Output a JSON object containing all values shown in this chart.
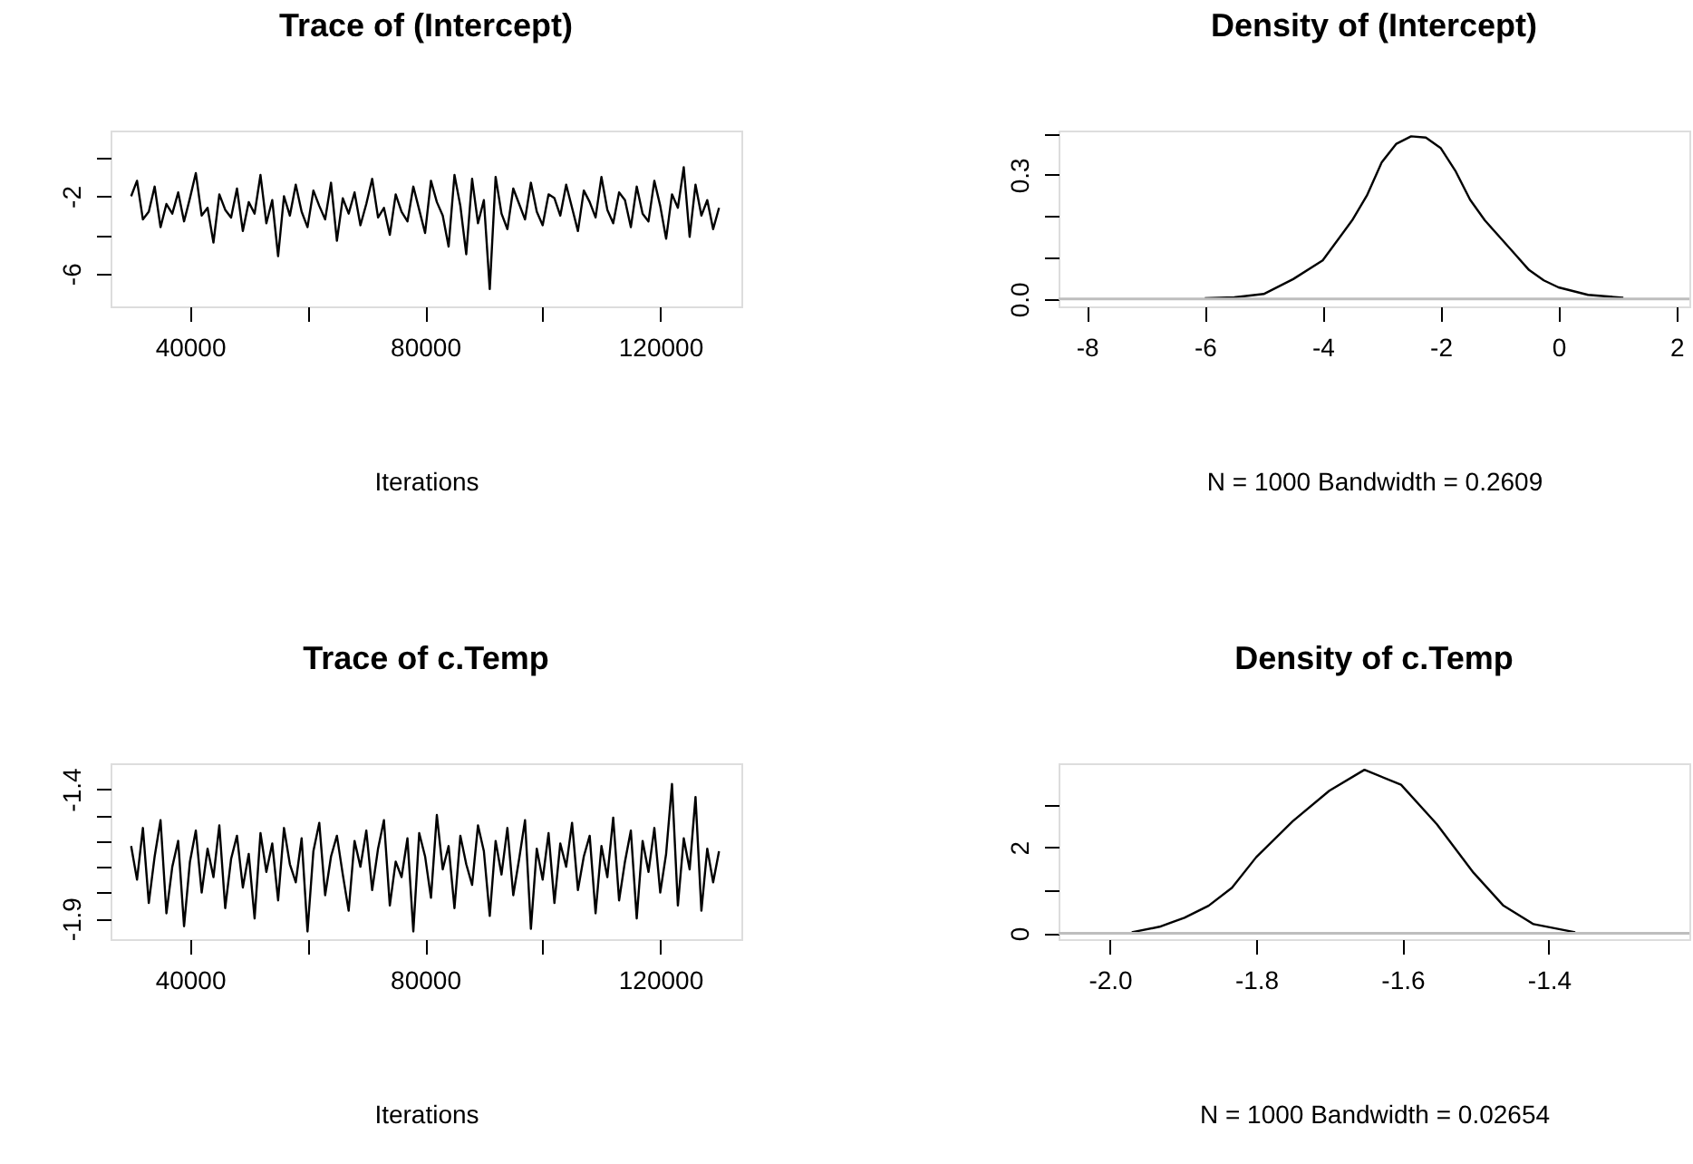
{
  "chart_data": [
    {
      "type": "line",
      "title": "Trace of (Intercept)",
      "xlabel": "Iterations",
      "grid": false,
      "marker": "none",
      "line_style": "solid",
      "xlim": [
        26500,
        133800
      ],
      "ylim": [
        -7.7,
        1.4
      ],
      "xticks": [
        40000,
        {
          "value": 60000,
          "label": null
        },
        80000,
        {
          "value": 100000,
          "label": null
        },
        120000
      ],
      "yticks": [
        {
          "value": 0,
          "label": null
        },
        -2,
        {
          "value": -4,
          "label": null
        },
        -6
      ],
      "series": [
        {
          "color": "#000000",
          "x": [
            30000,
            31000,
            32000,
            33000,
            34000,
            35000,
            36000,
            37000,
            38000,
            39000,
            40000,
            41000,
            42000,
            43000,
            44000,
            45000,
            46000,
            47000,
            48000,
            49000,
            50000,
            51000,
            52000,
            53000,
            54000,
            55000,
            56000,
            57000,
            58000,
            59000,
            60000,
            61000,
            62000,
            63000,
            64000,
            65000,
            66000,
            67000,
            68000,
            69000,
            70000,
            71000,
            72000,
            73000,
            74000,
            75000,
            76000,
            77000,
            78000,
            79000,
            80000,
            81000,
            82000,
            83000,
            84000,
            85000,
            86000,
            87000,
            88000,
            89000,
            90000,
            91000,
            92000,
            93000,
            94000,
            95000,
            96000,
            97000,
            98000,
            99000,
            100000,
            101000,
            102000,
            103000,
            104000,
            105000,
            106000,
            107000,
            108000,
            109000,
            110000,
            111000,
            112000,
            113000,
            114000,
            115000,
            116000,
            117000,
            118000,
            119000,
            120000,
            121000,
            122000,
            123000,
            124000,
            125000,
            126000,
            127000,
            128000,
            129000,
            130000
          ],
          "values": [
            -2.0,
            -1.2,
            -3.2,
            -2.8,
            -1.5,
            -3.6,
            -2.4,
            -2.9,
            -1.8,
            -3.3,
            -2.1,
            -0.8,
            -3.0,
            -2.6,
            -4.4,
            -1.9,
            -2.7,
            -3.1,
            -1.6,
            -3.8,
            -2.3,
            -2.9,
            -0.9,
            -3.4,
            -2.2,
            -5.1,
            -2.0,
            -3.0,
            -1.4,
            -2.8,
            -3.6,
            -1.7,
            -2.5,
            -3.2,
            -1.3,
            -4.3,
            -2.1,
            -2.9,
            -1.8,
            -3.5,
            -2.4,
            -1.1,
            -3.1,
            -2.6,
            -4.0,
            -1.9,
            -2.8,
            -3.3,
            -1.5,
            -2.7,
            -3.9,
            -1.2,
            -2.3,
            -3.0,
            -4.6,
            -0.9,
            -2.5,
            -5.0,
            -1.1,
            -3.4,
            -2.2,
            -6.8,
            -1.0,
            -2.9,
            -3.7,
            -1.6,
            -2.4,
            -3.2,
            -1.3,
            -2.8,
            -3.5,
            -1.9,
            -2.1,
            -3.0,
            -1.4,
            -2.6,
            -3.8,
            -1.7,
            -2.3,
            -3.1,
            -1.0,
            -2.7,
            -3.4,
            -1.8,
            -2.2,
            -3.6,
            -1.5,
            -2.9,
            -3.3,
            -1.2,
            -2.5,
            -4.2,
            -1.9,
            -2.6,
            -0.5,
            -4.1,
            -1.4,
            -3.0,
            -2.2,
            -3.7,
            -2.6
          ]
        }
      ]
    },
    {
      "type": "line",
      "title": "Density of (Intercept)",
      "xlabel": "N = 1000   Bandwidth = 0.2609",
      "grid": false,
      "marker": "none",
      "line_style": "solid",
      "xlim": [
        -8.48,
        2.22
      ],
      "ylim": [
        -0.018,
        0.407
      ],
      "xticks": [
        -8,
        -6,
        -4,
        -2,
        0,
        2
      ],
      "yticks": [
        {
          "value": 0,
          "label": "0.0"
        },
        {
          "value": 0.1,
          "label": null
        },
        {
          "value": 0.2,
          "label": null
        },
        0.3,
        {
          "value": 0.4,
          "label": null
        }
      ],
      "ref_lines": [
        {
          "axis": "y",
          "value": 0,
          "color": "#bebebe"
        }
      ],
      "series": [
        {
          "color": "#000000",
          "x": [
            -6,
            -5.5,
            -5,
            -4.5,
            -4,
            -3.5,
            -3.25,
            -3,
            -2.75,
            -2.5,
            -2.25,
            -2,
            -1.75,
            -1.5,
            -1.25,
            -1,
            -0.75,
            -0.5,
            -0.25,
            0,
            0.5,
            1.1
          ],
          "values": [
            0.002,
            0.004,
            0.012,
            0.048,
            0.093,
            0.19,
            0.25,
            0.33,
            0.375,
            0.393,
            0.39,
            0.365,
            0.31,
            0.24,
            0.19,
            0.15,
            0.11,
            0.07,
            0.045,
            0.028,
            0.01,
            0.003
          ]
        }
      ]
    },
    {
      "type": "line",
      "title": "Trace of c.Temp",
      "xlabel": "Iterations",
      "grid": false,
      "marker": "none",
      "line_style": "solid",
      "xlim": [
        26500,
        133800
      ],
      "ylim": [
        -1.98,
        -1.3
      ],
      "xticks": [
        40000,
        {
          "value": 60000,
          "label": null
        },
        80000,
        {
          "value": 100000,
          "label": null
        },
        120000
      ],
      "yticks": [
        -1.4,
        {
          "value": -1.5,
          "label": null
        },
        {
          "value": -1.6,
          "label": null
        },
        {
          "value": -1.7,
          "label": null
        },
        {
          "value": -1.8,
          "label": null
        },
        -1.9
      ],
      "series": [
        {
          "color": "#000000",
          "x": [
            30000,
            31000,
            32000,
            33000,
            34000,
            35000,
            36000,
            37000,
            38000,
            39000,
            40000,
            41000,
            42000,
            43000,
            44000,
            45000,
            46000,
            47000,
            48000,
            49000,
            50000,
            51000,
            52000,
            53000,
            54000,
            55000,
            56000,
            57000,
            58000,
            59000,
            60000,
            61000,
            62000,
            63000,
            64000,
            65000,
            66000,
            67000,
            68000,
            69000,
            70000,
            71000,
            72000,
            73000,
            74000,
            75000,
            76000,
            77000,
            78000,
            79000,
            80000,
            81000,
            82000,
            83000,
            84000,
            85000,
            86000,
            87000,
            88000,
            89000,
            90000,
            91000,
            92000,
            93000,
            94000,
            95000,
            96000,
            97000,
            98000,
            99000,
            100000,
            101000,
            102000,
            103000,
            104000,
            105000,
            106000,
            107000,
            108000,
            109000,
            110000,
            111000,
            112000,
            113000,
            114000,
            115000,
            116000,
            117000,
            118000,
            119000,
            120000,
            121000,
            122000,
            123000,
            124000,
            125000,
            126000,
            127000,
            128000,
            129000,
            130000
          ],
          "values": [
            -1.62,
            -1.75,
            -1.55,
            -1.84,
            -1.66,
            -1.52,
            -1.88,
            -1.7,
            -1.6,
            -1.93,
            -1.68,
            -1.56,
            -1.8,
            -1.63,
            -1.74,
            -1.54,
            -1.86,
            -1.67,
            -1.58,
            -1.78,
            -1.65,
            -1.9,
            -1.57,
            -1.72,
            -1.61,
            -1.83,
            -1.55,
            -1.69,
            -1.76,
            -1.59,
            -1.95,
            -1.64,
            -1.53,
            -1.81,
            -1.66,
            -1.58,
            -1.73,
            -1.87,
            -1.6,
            -1.7,
            -1.56,
            -1.79,
            -1.63,
            -1.52,
            -1.85,
            -1.68,
            -1.74,
            -1.59,
            -1.95,
            -1.57,
            -1.66,
            -1.82,
            -1.5,
            -1.71,
            -1.62,
            -1.86,
            -1.58,
            -1.69,
            -1.77,
            -1.54,
            -1.64,
            -1.89,
            -1.6,
            -1.73,
            -1.55,
            -1.81,
            -1.67,
            -1.52,
            -1.94,
            -1.63,
            -1.75,
            -1.57,
            -1.84,
            -1.61,
            -1.7,
            -1.53,
            -1.79,
            -1.66,
            -1.58,
            -1.88,
            -1.62,
            -1.74,
            -1.51,
            -1.83,
            -1.68,
            -1.56,
            -1.9,
            -1.6,
            -1.72,
            -1.55,
            -1.8,
            -1.65,
            -1.38,
            -1.85,
            -1.59,
            -1.71,
            -1.43,
            -1.87,
            -1.63,
            -1.76,
            -1.64
          ]
        }
      ]
    },
    {
      "type": "line",
      "title": "Density of c.Temp",
      "xlabel": "N = 1000   Bandwidth = 0.02654",
      "grid": false,
      "marker": "none",
      "line_style": "solid",
      "xlim": [
        -2.07,
        -1.208
      ],
      "ylim": [
        -0.14,
        3.96
      ],
      "xticks": [
        {
          "value": -2.0,
          "label": "-2.0"
        },
        -1.8,
        -1.6,
        -1.4
      ],
      "yticks": [
        0,
        {
          "value": 1,
          "label": null
        },
        2,
        {
          "value": 3,
          "label": null
        }
      ],
      "ref_lines": [
        {
          "axis": "y",
          "value": 0,
          "color": "#bebebe"
        }
      ],
      "series": [
        {
          "color": "#000000",
          "x": [
            -1.97,
            -1.932,
            -1.898,
            -1.865,
            -1.833,
            -1.8,
            -1.75,
            -1.7,
            -1.652,
            -1.602,
            -1.553,
            -1.503,
            -1.462,
            -1.421,
            -1.364
          ],
          "values": [
            0.02,
            0.15,
            0.36,
            0.64,
            1.06,
            1.77,
            2.61,
            3.32,
            3.81,
            3.46,
            2.54,
            1.41,
            0.64,
            0.21,
            0.02
          ]
        }
      ]
    }
  ]
}
